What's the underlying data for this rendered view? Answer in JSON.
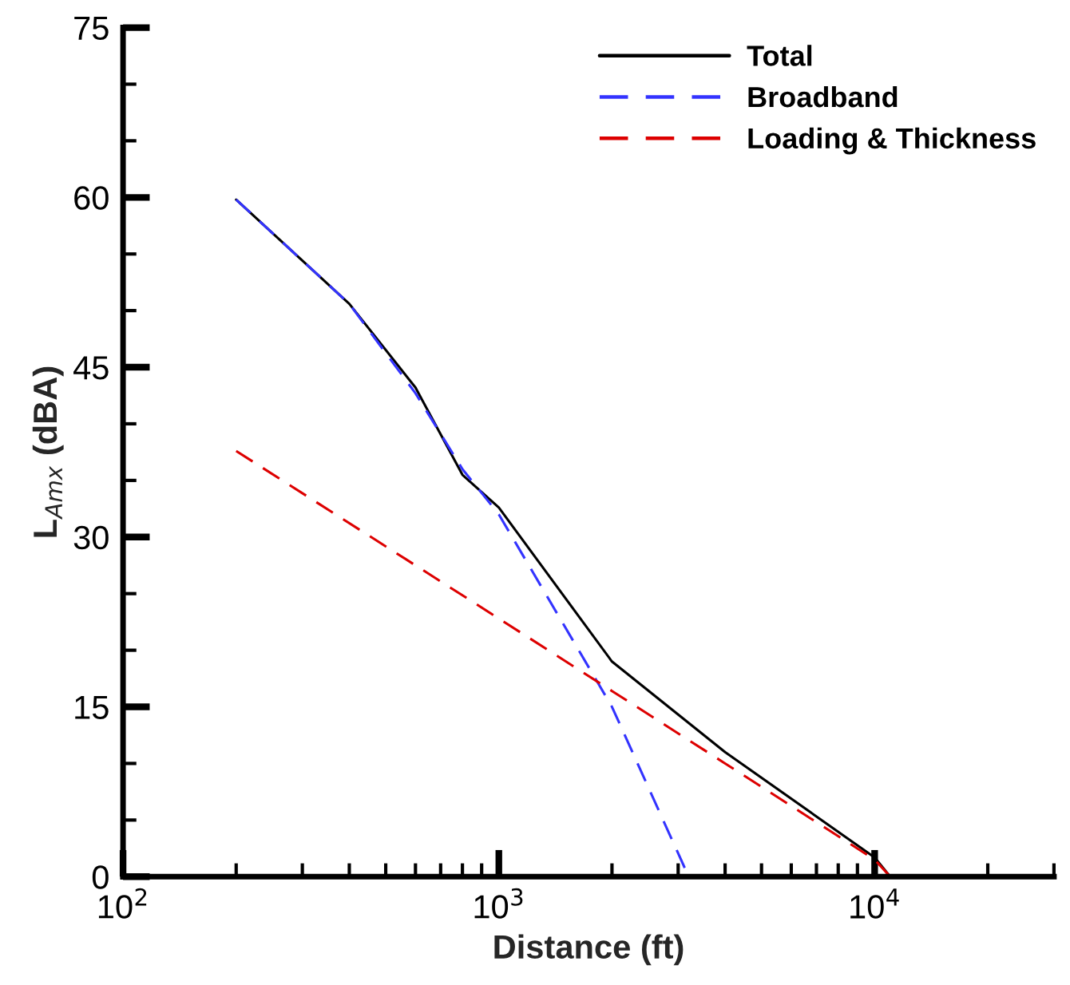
{
  "chart_data": {
    "type": "line",
    "xlabel": "Distance (ft)",
    "ylabel": "L$_{Amx}$ (dBA)",
    "log": "x",
    "xlim": [
      100,
      30000
    ],
    "xticks": [
      {
        "value": 100,
        "label": "10$^{2}$"
      },
      {
        "value": 1000,
        "label": "10$^{3}$"
      },
      {
        "value": 10000,
        "label": "10$^{4}$"
      }
    ],
    "ylim": [
      0,
      75
    ],
    "yticks": [
      0,
      15,
      30,
      45,
      60,
      75
    ],
    "grid": false,
    "legend": "top right",
    "series": [
      {
        "name": "Total",
        "color": "#000000",
        "line_style": "solid",
        "x": [
          200,
          400,
          600,
          800,
          1000,
          2000,
          4000,
          10000,
          11000
        ],
        "values": [
          59.8,
          50.6,
          43.2,
          35.5,
          32.6,
          19.0,
          11.0,
          1.7,
          0
        ]
      },
      {
        "name": "Broadband",
        "color": "#3333ff",
        "line_style": "dashed",
        "x": [
          200,
          400,
          600,
          800,
          1000,
          2000,
          3200
        ],
        "values": [
          59.8,
          50.6,
          42.7,
          36.0,
          32.0,
          15.0,
          0
        ]
      },
      {
        "name": "Loading & Thickness",
        "color": "#dd0000",
        "line_style": "dashed",
        "x": [
          200,
          1000,
          2000,
          4000,
          10000,
          11000
        ],
        "values": [
          37.6,
          22.8,
          16.4,
          10.0,
          1.5,
          0
        ]
      }
    ]
  }
}
